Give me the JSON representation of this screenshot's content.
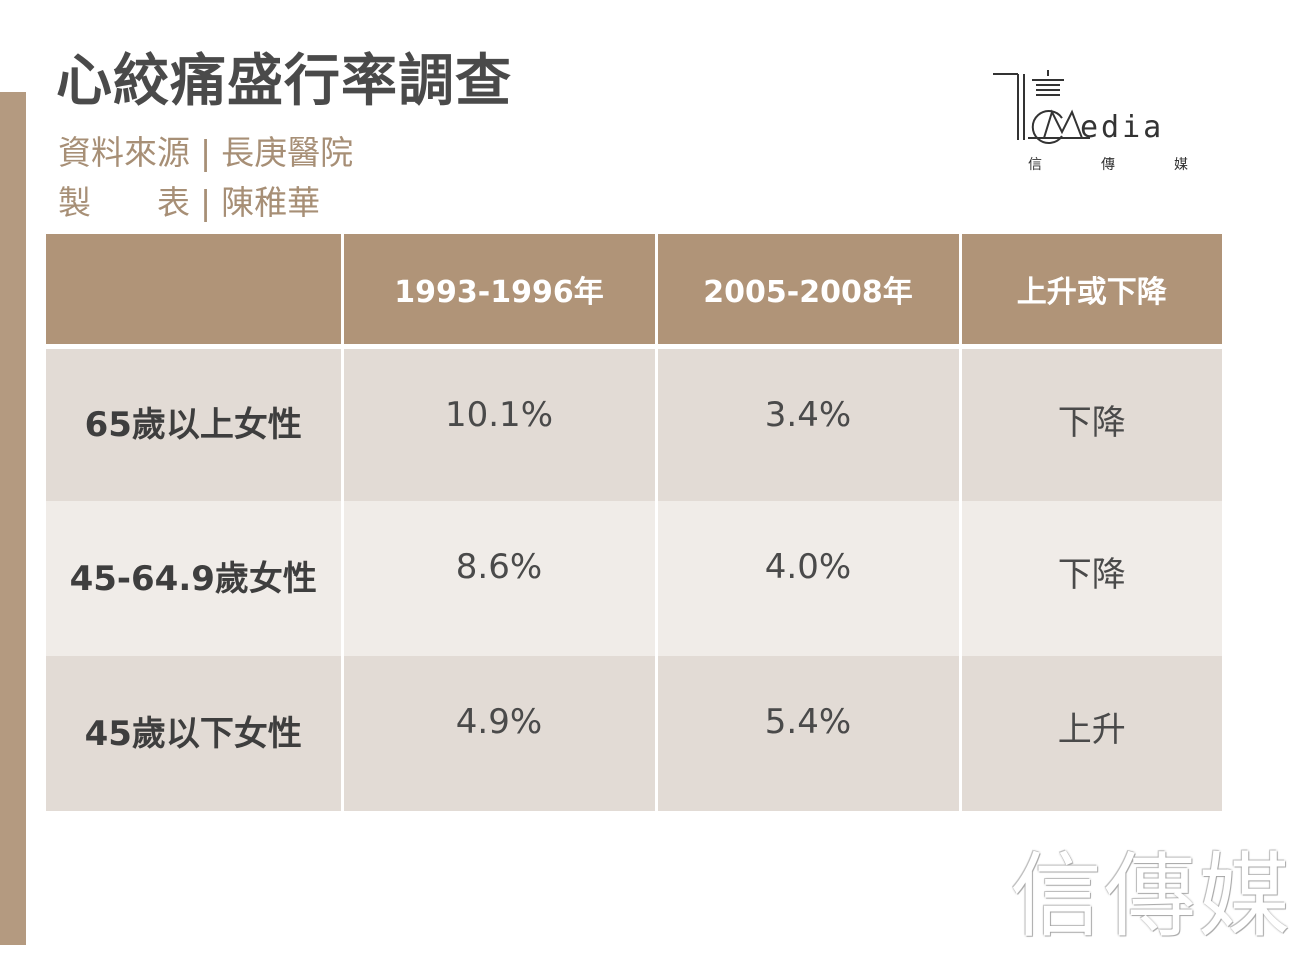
{
  "title": "心絞痛盛行率調查",
  "meta": {
    "source_label": "資料來源",
    "source_value": "長庚醫院",
    "maker_label_1": "製",
    "maker_label_2": "表",
    "maker_value": "陳稚華",
    "separator": "|"
  },
  "logo": {
    "text": "edia",
    "sub": [
      "信",
      "傳",
      "媒"
    ]
  },
  "table": {
    "headers": [
      "",
      "1993-1996年",
      "2005-2008年",
      "上升或下降"
    ],
    "rows": [
      [
        "65歲以上女性",
        "10.1%",
        "3.4%",
        "下降"
      ],
      [
        "45-64.9歲女性",
        "8.6%",
        "4.0%",
        "下降"
      ],
      [
        "45歲以下女性",
        "4.9%",
        "5.4%",
        "上升"
      ]
    ]
  },
  "watermark": "信傳媒",
  "colors": {
    "accent": "#b09478",
    "side_bar": "#b49a80",
    "row_dark": "#e2dbd5",
    "row_light": "#f0ece8",
    "title_text": "#4a4a4a",
    "meta_text": "#a78f76"
  }
}
